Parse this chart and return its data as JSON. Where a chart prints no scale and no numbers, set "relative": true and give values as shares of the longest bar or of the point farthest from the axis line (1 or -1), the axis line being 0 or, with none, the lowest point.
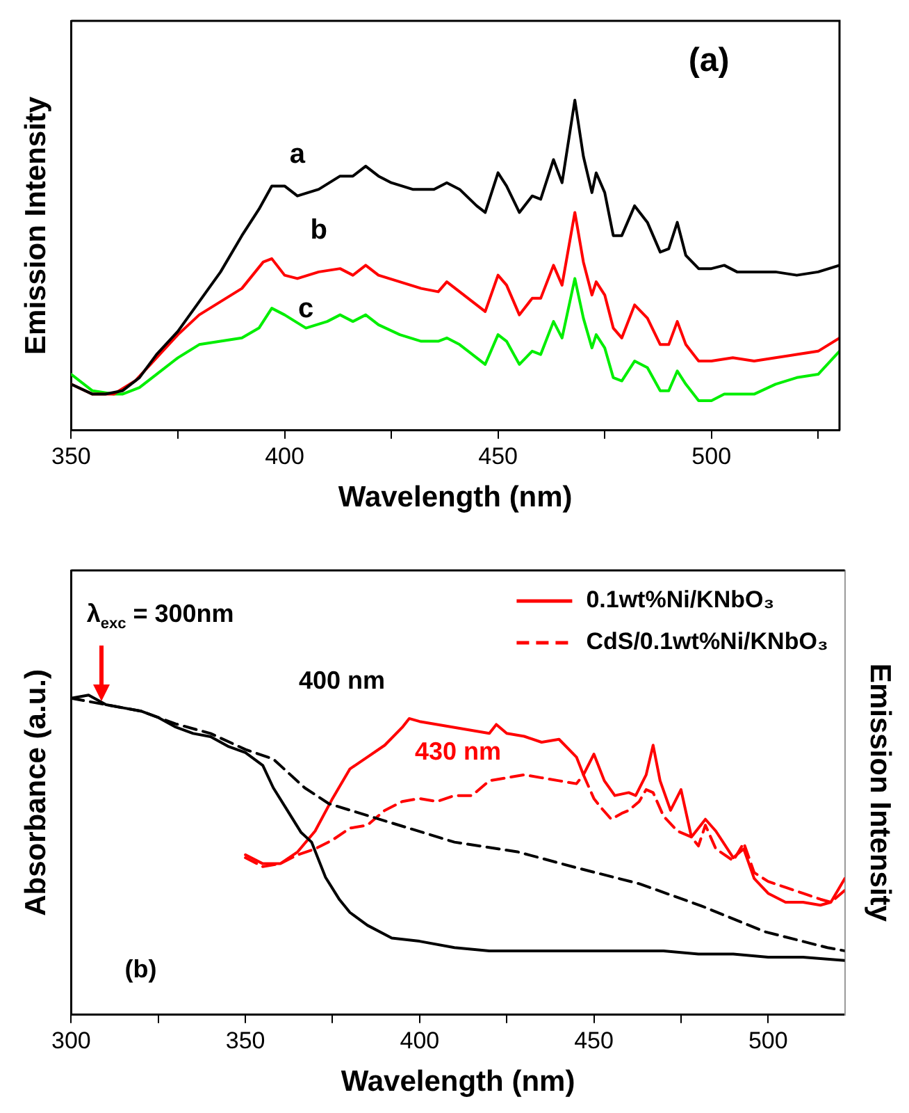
{
  "chart_data": [
    {
      "type": "line",
      "relative": true,
      "xlabel": "Wavelength (nm)",
      "ylabel": "Emission Intensity",
      "xlim": [
        350,
        530
      ],
      "xticks": [
        350,
        {
          "value": 375,
          "label": null
        },
        400,
        {
          "value": 425,
          "label": null
        },
        450,
        {
          "value": 475,
          "label": null
        },
        500,
        {
          "value": 525,
          "label": null
        }
      ],
      "tick_labels": "x",
      "grid": false,
      "legend": false,
      "marker": "none",
      "annotations": [
        "(a)"
      ],
      "series": [
        {
          "name": "a",
          "color": "#000000",
          "x": [
            350,
            355,
            358,
            362,
            366,
            370,
            375,
            380,
            385,
            390,
            394,
            397,
            400,
            403,
            408,
            413,
            416,
            419,
            422,
            425,
            430,
            435,
            438,
            441,
            445,
            447,
            450,
            452,
            455,
            458,
            460,
            463,
            465,
            468,
            470,
            472,
            473,
            475,
            477,
            479,
            482,
            485,
            488,
            490,
            492,
            494,
            497,
            500,
            503,
            506,
            510,
            515,
            520,
            525,
            530
          ],
          "values": [
            0.14,
            0.11,
            0.11,
            0.12,
            0.16,
            0.23,
            0.3,
            0.39,
            0.48,
            0.59,
            0.67,
            0.74,
            0.74,
            0.71,
            0.73,
            0.77,
            0.77,
            0.8,
            0.77,
            0.75,
            0.73,
            0.73,
            0.75,
            0.73,
            0.68,
            0.66,
            0.78,
            0.74,
            0.66,
            0.71,
            0.7,
            0.82,
            0.75,
            1,
            0.83,
            0.72,
            0.78,
            0.72,
            0.59,
            0.59,
            0.68,
            0.63,
            0.54,
            0.55,
            0.63,
            0.53,
            0.49,
            0.49,
            0.5,
            0.48,
            0.48,
            0.48,
            0.47,
            0.48,
            0.5
          ]
        },
        {
          "name": "b",
          "color": "#ff0000",
          "x": [
            350,
            355,
            360,
            365,
            370,
            375,
            380,
            385,
            390,
            395,
            397,
            400,
            403,
            408,
            413,
            416,
            419,
            422,
            427,
            432,
            436,
            438,
            441,
            445,
            447,
            450,
            452,
            455,
            458,
            460,
            463,
            465,
            468,
            470,
            472,
            473,
            475,
            477,
            479,
            482,
            485,
            488,
            490,
            492,
            494,
            497,
            500,
            505,
            510,
            515,
            520,
            525,
            530
          ],
          "values": [
            0.14,
            0.11,
            0.11,
            0.15,
            0.22,
            0.29,
            0.35,
            0.39,
            0.43,
            0.51,
            0.52,
            0.47,
            0.46,
            0.48,
            0.49,
            0.47,
            0.5,
            0.47,
            0.45,
            0.43,
            0.42,
            0.45,
            0.42,
            0.38,
            0.36,
            0.47,
            0.44,
            0.35,
            0.4,
            0.4,
            0.5,
            0.44,
            0.66,
            0.51,
            0.41,
            0.45,
            0.41,
            0.31,
            0.28,
            0.38,
            0.34,
            0.26,
            0.26,
            0.33,
            0.26,
            0.21,
            0.21,
            0.22,
            0.21,
            0.22,
            0.23,
            0.24,
            0.28
          ]
        },
        {
          "name": "c",
          "color": "#00ee00",
          "x": [
            350,
            355,
            360,
            362,
            366,
            370,
            375,
            380,
            385,
            390,
            394,
            397,
            400,
            405,
            410,
            413,
            416,
            419,
            422,
            427,
            432,
            436,
            438,
            441,
            445,
            447,
            450,
            452,
            455,
            458,
            460,
            463,
            465,
            468,
            470,
            472,
            473,
            475,
            477,
            479,
            482,
            485,
            488,
            490,
            492,
            494,
            497,
            500,
            503,
            510,
            515,
            520,
            525,
            530
          ],
          "values": [
            0.17,
            0.12,
            0.11,
            0.11,
            0.13,
            0.17,
            0.22,
            0.26,
            0.27,
            0.28,
            0.31,
            0.37,
            0.35,
            0.31,
            0.33,
            0.35,
            0.33,
            0.35,
            0.32,
            0.29,
            0.27,
            0.27,
            0.28,
            0.26,
            0.22,
            0.2,
            0.29,
            0.27,
            0.2,
            0.24,
            0.23,
            0.33,
            0.28,
            0.46,
            0.34,
            0.25,
            0.29,
            0.25,
            0.16,
            0.15,
            0.21,
            0.19,
            0.12,
            0.12,
            0.18,
            0.14,
            0.09,
            0.09,
            0.11,
            0.11,
            0.14,
            0.16,
            0.17,
            0.24
          ]
        }
      ]
    },
    {
      "type": "line",
      "relative": true,
      "xlabel": "Wavelength (nm)",
      "ylabel": "Absorbance (a.u.)",
      "y2label": "Emission Intensity",
      "xlim": [
        300,
        522
      ],
      "xticks": [
        300,
        {
          "value": 325,
          "label": null
        },
        350,
        {
          "value": 375,
          "label": null
        },
        400,
        {
          "value": 425,
          "label": null
        },
        450,
        {
          "value": 475,
          "label": null
        },
        500
      ],
      "tick_labels": "x",
      "grid": false,
      "legend": "top right",
      "marker": "none",
      "annotations": [
        "λ$_{exc}$ = 300nm",
        "400 nm",
        "430 nm",
        "(b)"
      ],
      "series": [
        {
          "color": "#000000",
          "line_style": "solid",
          "x": [
            300,
            305,
            310,
            315,
            320,
            325,
            330,
            335,
            340,
            345,
            350,
            355,
            358,
            362,
            366,
            369,
            373,
            377,
            380,
            385,
            392,
            400,
            410,
            420,
            430,
            440,
            450,
            460,
            470,
            480,
            490,
            500,
            510,
            522
          ],
          "values": [
            0.99,
            1,
            0.97,
            0.96,
            0.95,
            0.93,
            0.9,
            0.88,
            0.87,
            0.84,
            0.82,
            0.78,
            0.71,
            0.64,
            0.57,
            0.54,
            0.43,
            0.36,
            0.32,
            0.28,
            0.24,
            0.23,
            0.21,
            0.2,
            0.2,
            0.2,
            0.2,
            0.2,
            0.2,
            0.19,
            0.19,
            0.18,
            0.18,
            0.17
          ]
        },
        {
          "color": "#000000",
          "line_style": "dashed",
          "x": [
            300,
            310,
            320,
            330,
            340,
            350,
            358,
            367,
            374,
            392,
            410,
            428,
            445,
            463,
            481,
            499,
            517,
            522
          ],
          "values": [
            0.99,
            0.97,
            0.95,
            0.91,
            0.88,
            0.83,
            0.8,
            0.71,
            0.66,
            0.6,
            0.54,
            0.51,
            0.46,
            0.41,
            0.34,
            0.26,
            0.21,
            0.2
          ]
        },
        {
          "name": "0.1wt%Ni/KNbO₃",
          "color": "#ff0000",
          "axis": "y2",
          "line_style": "solid",
          "x": [
            350,
            355,
            360,
            365,
            370,
            375,
            380,
            385,
            390,
            395,
            397,
            400,
            410,
            420,
            422,
            425,
            430,
            435,
            440,
            445,
            447,
            450,
            453,
            456,
            460,
            462,
            465,
            467,
            469,
            472,
            475,
            478,
            482,
            485,
            490,
            493,
            496,
            500,
            505,
            510,
            515,
            518,
            522
          ],
          "values": [
            0.54,
            0.51,
            0.51,
            0.55,
            0.62,
            0.73,
            0.83,
            0.87,
            0.91,
            0.97,
            1,
            0.99,
            0.97,
            0.95,
            0.98,
            0.95,
            0.94,
            0.92,
            0.93,
            0.87,
            0.81,
            0.88,
            0.79,
            0.74,
            0.75,
            0.74,
            0.81,
            0.91,
            0.79,
            0.69,
            0.76,
            0.6,
            0.66,
            0.62,
            0.53,
            0.56,
            0.46,
            0.41,
            0.38,
            0.38,
            0.37,
            0.38,
            0.46
          ]
        },
        {
          "name": "CdS/0.1wt%Ni/KNbO₃",
          "color": "#ff0000",
          "axis": "y2",
          "line_style": "dashed",
          "x": [
            350,
            355,
            360,
            365,
            370,
            375,
            380,
            385,
            390,
            395,
            400,
            405,
            410,
            415,
            420,
            425,
            430,
            435,
            440,
            445,
            447,
            450,
            452,
            455,
            458,
            460,
            463,
            465,
            467,
            470,
            474,
            478,
            480,
            482,
            485,
            490,
            493,
            496,
            500,
            505,
            510,
            515,
            518,
            522
          ],
          "values": [
            0.53,
            0.5,
            0.51,
            0.54,
            0.56,
            0.59,
            0.63,
            0.64,
            0.69,
            0.72,
            0.73,
            0.72,
            0.74,
            0.74,
            0.79,
            0.8,
            0.81,
            0.8,
            0.79,
            0.78,
            0.81,
            0.73,
            0.7,
            0.66,
            0.68,
            0.69,
            0.72,
            0.76,
            0.75,
            0.67,
            0.62,
            0.6,
            0.57,
            0.64,
            0.56,
            0.52,
            0.58,
            0.48,
            0.45,
            0.43,
            0.41,
            0.39,
            0.38,
            0.42
          ]
        }
      ]
    }
  ]
}
